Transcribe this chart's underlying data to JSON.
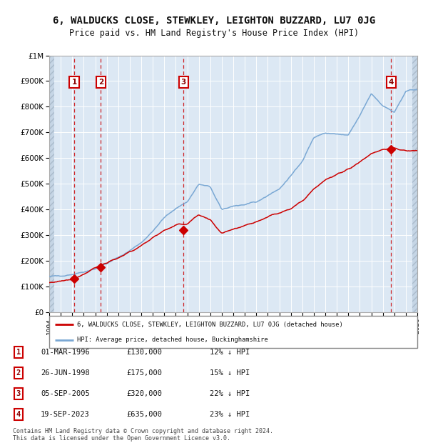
{
  "title": "6, WALDUCKS CLOSE, STEWKLEY, LEIGHTON BUZZARD, LU7 0JG",
  "subtitle": "Price paid vs. HM Land Registry's House Price Index (HPI)",
  "title_fontsize": 10,
  "subtitle_fontsize": 8.5,
  "ylim": [
    0,
    1000000
  ],
  "yticks": [
    0,
    100000,
    200000,
    300000,
    400000,
    500000,
    600000,
    700000,
    800000,
    900000,
    1000000
  ],
  "ytick_labels": [
    "£0",
    "£100K",
    "£200K",
    "£300K",
    "£400K",
    "£500K",
    "£600K",
    "£700K",
    "£800K",
    "£900K",
    "£1M"
  ],
  "hpi_color": "#7aa8d4",
  "price_color": "#cc0000",
  "bg_color": "#dce8f4",
  "hatch_bg_color": "#c5d5e5",
  "grid_color": "#ffffff",
  "sale_dates_num": [
    1996.17,
    1998.49,
    2005.67,
    2023.72
  ],
  "sale_prices": [
    130000,
    175000,
    320000,
    635000
  ],
  "sale_labels": [
    "1",
    "2",
    "3",
    "4"
  ],
  "legend_label_price": "6, WALDUCKS CLOSE, STEWKLEY, LEIGHTON BUZZARD, LU7 0JG (detached house)",
  "legend_label_hpi": "HPI: Average price, detached house, Buckinghamshire",
  "table_rows": [
    {
      "num": "1",
      "date": "01-MAR-1996",
      "price": "£130,000",
      "pct": "12% ↓ HPI"
    },
    {
      "num": "2",
      "date": "26-JUN-1998",
      "price": "£175,000",
      "pct": "15% ↓ HPI"
    },
    {
      "num": "3",
      "date": "05-SEP-2005",
      "price": "£320,000",
      "pct": "22% ↓ HPI"
    },
    {
      "num": "4",
      "date": "19-SEP-2023",
      "price": "£635,000",
      "pct": "23% ↓ HPI"
    }
  ],
  "footnote": "Contains HM Land Registry data © Crown copyright and database right 2024.\nThis data is licensed under the Open Government Licence v3.0.",
  "xmin": 1994.0,
  "xmax": 2026.0,
  "hpi_years": [
    1994,
    1995,
    1996,
    1997,
    1998,
    1999,
    2000,
    2001,
    2002,
    2003,
    2004,
    2005,
    2006,
    2007,
    2008,
    2009,
    2010,
    2011,
    2012,
    2013,
    2014,
    2015,
    2016,
    2017,
    2018,
    2019,
    2020,
    2021,
    2022,
    2023,
    2024,
    2025,
    2026
  ],
  "hpi_vals": [
    138000,
    143000,
    148000,
    158000,
    170000,
    190000,
    213000,
    240000,
    272000,
    315000,
    368000,
    405000,
    430000,
    498000,
    488000,
    398000,
    415000,
    418000,
    428000,
    455000,
    480000,
    530000,
    590000,
    680000,
    698000,
    693000,
    688000,
    765000,
    852000,
    805000,
    778000,
    858000,
    870000
  ],
  "price_years": [
    1994,
    1995,
    1996,
    1997,
    1998,
    1999,
    2000,
    2001,
    2002,
    2003,
    2004,
    2005,
    2006,
    2007,
    2008,
    2009,
    2010,
    2011,
    2012,
    2013,
    2014,
    2015,
    2016,
    2017,
    2018,
    2019,
    2020,
    2021,
    2022,
    2023,
    2024,
    2025,
    2026
  ],
  "price_vals": [
    115000,
    122000,
    130000,
    148000,
    175000,
    192000,
    210000,
    235000,
    258000,
    292000,
    318000,
    340000,
    345000,
    378000,
    358000,
    308000,
    325000,
    338000,
    352000,
    372000,
    388000,
    405000,
    432000,
    482000,
    515000,
    535000,
    558000,
    585000,
    618000,
    635000,
    638000,
    628000,
    630000
  ]
}
